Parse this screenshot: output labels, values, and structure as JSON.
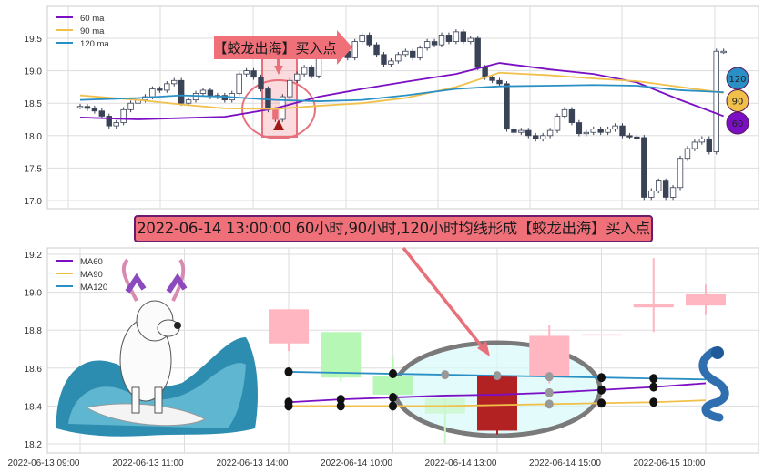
{
  "chart_data": [
    {
      "type": "candlestick",
      "grid": true,
      "legend_placement": "top-left",
      "ylim": [
        16.9,
        19.95
      ],
      "yticks": [
        19.5,
        19.0,
        18.5,
        18.0,
        17.5,
        17.0
      ],
      "ytick_labels": [
        "19.5",
        "19.0",
        "18.5",
        "18.0",
        "17.5",
        "17.0"
      ],
      "close": [
        18.45,
        18.42,
        18.38,
        18.3,
        18.15,
        18.2,
        18.4,
        18.5,
        18.55,
        18.6,
        18.72,
        18.7,
        18.8,
        18.85,
        18.5,
        18.55,
        18.65,
        18.7,
        18.6,
        18.62,
        18.55,
        18.65,
        18.95,
        19.0,
        18.9,
        18.72,
        18.4,
        18.25,
        18.6,
        18.85,
        18.95,
        19.05,
        18.92,
        19.3,
        19.45,
        19.5,
        19.3,
        19.2,
        19.45,
        19.55,
        19.4,
        19.25,
        19.1,
        19.15,
        19.25,
        19.3,
        19.2,
        19.35,
        19.45,
        19.4,
        19.55,
        19.45,
        19.6,
        19.45,
        19.5,
        19.05,
        18.9,
        18.85,
        18.8,
        18.1,
        18.05,
        18.08,
        18.0,
        17.95,
        18.0,
        18.08,
        18.3,
        18.4,
        18.2,
        18.03,
        18.05,
        18.1,
        18.05,
        18.1,
        18.15,
        18.0,
        17.98,
        17.97,
        17.05,
        17.15,
        17.3,
        17.05,
        17.2,
        17.65,
        17.8,
        17.9,
        17.95,
        17.75,
        19.3,
        19.3
      ],
      "highlight_index": 27,
      "series": [
        {
          "name": "60 ma",
          "color": "#7b0fc4",
          "x": [
            0,
            8,
            14,
            20,
            27,
            33,
            39,
            45,
            52,
            58,
            65,
            71,
            77,
            83,
            89
          ],
          "values": [
            18.28,
            18.25,
            18.27,
            18.29,
            18.42,
            18.6,
            18.72,
            18.83,
            18.95,
            19.12,
            19.02,
            18.95,
            18.82,
            18.55,
            18.3
          ]
        },
        {
          "name": "90 ma",
          "color": "#f0c04a",
          "x": [
            0,
            8,
            14,
            20,
            27,
            33,
            39,
            45,
            52,
            58,
            65,
            71,
            77,
            83,
            89
          ],
          "values": [
            18.62,
            18.55,
            18.48,
            18.42,
            18.41,
            18.46,
            18.5,
            18.58,
            18.75,
            18.97,
            18.93,
            18.88,
            18.84,
            18.75,
            18.66
          ]
        },
        {
          "name": "120 ma",
          "color": "#2a8fc4",
          "x": [
            0,
            8,
            14,
            20,
            27,
            33,
            39,
            45,
            52,
            58,
            65,
            71,
            77,
            83,
            89
          ],
          "values": [
            18.55,
            18.58,
            18.62,
            18.6,
            18.55,
            18.53,
            18.55,
            18.62,
            18.72,
            18.76,
            18.77,
            18.78,
            18.77,
            18.7,
            18.67
          ]
        }
      ],
      "annotation": "【蛟龙出海】买入点",
      "end_badges": [
        {
          "label": "120",
          "color": "#2a8fc4"
        },
        {
          "label": "90",
          "color": "#f0c04a"
        },
        {
          "label": "60",
          "color": "#7b0fc4"
        }
      ]
    },
    {
      "type": "candlestick",
      "grid": true,
      "legend_placement": "top-left",
      "ylim": [
        18.18,
        19.22
      ],
      "yticks": [
        19.2,
        19.0,
        18.8,
        18.6,
        18.4,
        18.2
      ],
      "ytick_labels": [
        "19.2",
        "19.0",
        "18.8",
        "18.6",
        "18.4",
        "18.2"
      ],
      "xtick_labels": [
        "2022-06-13 09:00",
        "2022-06-13 11:00",
        "2022-06-13 14:00",
        "2022-06-14 10:00",
        "2022-06-14 13:00",
        "2022-06-14 15:00",
        "2022-06-15 10:00"
      ],
      "candles": [
        {
          "open": 18.73,
          "high": 18.91,
          "low": 18.69,
          "close": 18.91,
          "color": "#ffb6c1"
        },
        {
          "open": 18.79,
          "high": 18.79,
          "low": 18.53,
          "close": 18.55,
          "color": "#b6f7b6"
        },
        {
          "open": 18.56,
          "high": 18.66,
          "low": 18.46,
          "close": 18.46,
          "color": "#b6f7b6"
        },
        {
          "open": 18.44,
          "high": 18.44,
          "low": 18.2,
          "close": 18.36,
          "color": "#c8f7c8"
        },
        {
          "open": 18.56,
          "high": 18.56,
          "low": 18.25,
          "close": 18.27,
          "color": "#b22222"
        },
        {
          "open": 18.56,
          "high": 18.83,
          "low": 18.52,
          "close": 18.77,
          "color": "#ffb6c1"
        },
        {
          "open": 18.78,
          "high": 18.78,
          "low": 18.78,
          "close": 18.78,
          "color": "#ffe4e8"
        },
        {
          "open": 18.92,
          "high": 19.18,
          "low": 18.79,
          "close": 18.94,
          "color": "#ffb6c1"
        },
        {
          "open": 18.93,
          "high": 19.04,
          "low": 18.88,
          "close": 18.99,
          "color": "#ffb6c1"
        }
      ],
      "series": [
        {
          "name": "MA60",
          "color": "#7b0fc4",
          "values": [
            18.42,
            18.435,
            18.445,
            18.455,
            18.46,
            18.47,
            18.485,
            18.5,
            18.52
          ]
        },
        {
          "name": "MA90",
          "color": "#f0c04a",
          "values": [
            18.4,
            18.4,
            18.4,
            18.4,
            18.405,
            18.41,
            18.415,
            18.42,
            18.43
          ]
        },
        {
          "name": "MA120",
          "color": "#2a8fc4",
          "values": [
            18.58,
            18.575,
            18.57,
            18.565,
            18.56,
            18.555,
            18.55,
            18.545,
            18.54
          ]
        }
      ]
    }
  ],
  "banner": "2022-06-14 13:00:00 60小时,90小时,120小时均线形成【蛟龙出海】买入点"
}
